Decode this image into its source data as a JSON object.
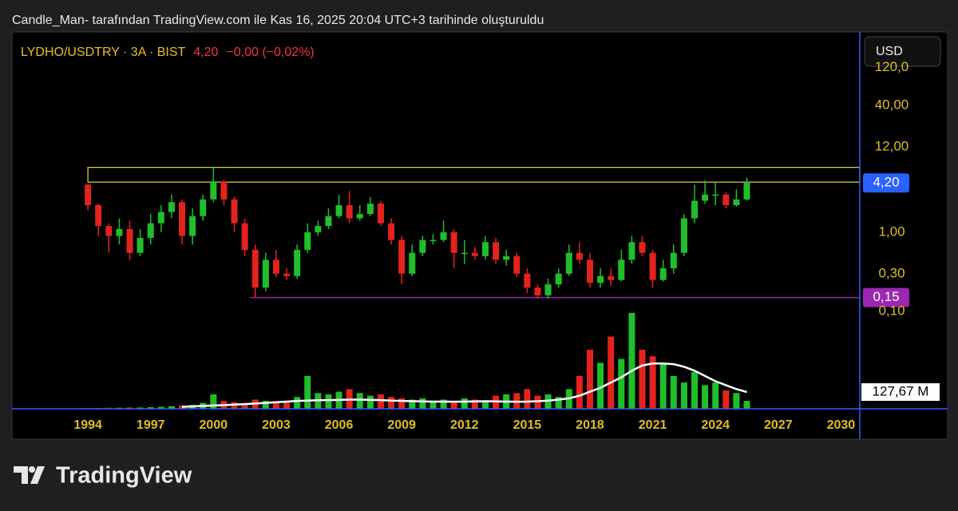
{
  "attribution": "Candle_Man- tarafından TradingView.com ile Kas 16, 2025 20:04 UTC+3 tarihinde oluşturuldu",
  "footer_logo": "TradingView",
  "chart_data": {
    "type": "candlestick",
    "header": {
      "symbol": "LYDHO/USDTRY · 3A · BIST",
      "last": "4,20",
      "change": "−0,00 (−0,02%)"
    },
    "currency_button": "USD",
    "x": [
      1994,
      1994.5,
      1995,
      1995.5,
      1996,
      1996.5,
      1997,
      1997.5,
      1998,
      1998.5,
      1999,
      1999.5,
      2000,
      2000.5,
      2001,
      2001.5,
      2002,
      2002.5,
      2003,
      2003.5,
      2004,
      2004.5,
      2005,
      2005.5,
      2006,
      2006.5,
      2007,
      2007.5,
      2008,
      2008.5,
      2009,
      2009.5,
      2010,
      2010.5,
      2011,
      2011.5,
      2012,
      2012.5,
      2013,
      2013.5,
      2014,
      2014.5,
      2015,
      2015.5,
      2016,
      2016.5,
      2017,
      2017.5,
      2018,
      2018.5,
      2019,
      2019.5,
      2020,
      2020.5,
      2021,
      2021.5,
      2022,
      2022.5,
      2023,
      2023.5,
      2024,
      2024.5,
      2025,
      2025.5
    ],
    "open": [
      4.0,
      2.2,
      1.2,
      0.9,
      1.1,
      0.55,
      0.85,
      1.3,
      1.8,
      2.4,
      0.9,
      1.6,
      2.6,
      4.4,
      2.6,
      1.3,
      0.6,
      0.2,
      0.45,
      0.3,
      0.28,
      0.6,
      1.0,
      1.2,
      1.6,
      2.2,
      1.5,
      1.7,
      2.3,
      1.3,
      0.8,
      0.3,
      0.55,
      0.8,
      0.8,
      1.0,
      0.55,
      0.55,
      0.5,
      0.75,
      0.45,
      0.5,
      0.3,
      0.2,
      0.16,
      0.22,
      0.3,
      0.55,
      0.45,
      0.23,
      0.28,
      0.25,
      0.45,
      0.75,
      0.55,
      0.25,
      0.35,
      0.55,
      1.5,
      2.5,
      3.0,
      3.0,
      2.2,
      2.6
    ],
    "high": [
      4.1,
      2.3,
      1.3,
      1.5,
      1.4,
      1.1,
      1.7,
      2.2,
      3.0,
      2.6,
      2.0,
      3.0,
      6.6,
      4.6,
      2.8,
      1.5,
      0.7,
      0.55,
      0.6,
      0.35,
      0.7,
      1.3,
      1.4,
      2.0,
      3.0,
      3.3,
      2.2,
      2.8,
      2.5,
      1.5,
      0.9,
      0.7,
      0.9,
      0.95,
      1.4,
      1.1,
      0.8,
      0.65,
      0.9,
      0.85,
      0.6,
      0.55,
      0.35,
      0.22,
      0.26,
      0.35,
      0.7,
      0.75,
      0.55,
      0.35,
      0.35,
      0.6,
      0.9,
      0.9,
      0.6,
      0.45,
      0.7,
      1.7,
      4.0,
      4.5,
      4.3,
      3.2,
      3.5,
      4.9
    ],
    "low": [
      1.9,
      0.9,
      0.55,
      0.7,
      0.45,
      0.5,
      0.7,
      1.0,
      1.5,
      0.7,
      0.7,
      1.4,
      2.4,
      2.2,
      1.0,
      0.5,
      0.15,
      0.18,
      0.27,
      0.25,
      0.26,
      0.55,
      0.9,
      1.1,
      1.5,
      1.3,
      1.4,
      1.6,
      1.2,
      0.7,
      0.22,
      0.28,
      0.5,
      0.7,
      0.75,
      0.35,
      0.4,
      0.45,
      0.45,
      0.4,
      0.38,
      0.27,
      0.17,
      0.145,
      0.145,
      0.2,
      0.28,
      0.4,
      0.2,
      0.2,
      0.21,
      0.24,
      0.4,
      0.5,
      0.2,
      0.24,
      0.3,
      0.5,
      1.3,
      2.3,
      2.2,
      2.0,
      2.1,
      2.5
    ],
    "close": [
      2.2,
      1.2,
      0.9,
      1.1,
      0.55,
      0.85,
      1.3,
      1.8,
      2.4,
      0.9,
      1.6,
      2.6,
      4.4,
      2.6,
      1.3,
      0.6,
      0.2,
      0.45,
      0.3,
      0.28,
      0.6,
      1.0,
      1.2,
      1.6,
      2.2,
      1.5,
      1.7,
      2.3,
      1.3,
      0.8,
      0.3,
      0.55,
      0.8,
      0.8,
      1.0,
      0.55,
      0.55,
      0.5,
      0.75,
      0.45,
      0.5,
      0.3,
      0.2,
      0.16,
      0.22,
      0.3,
      0.55,
      0.45,
      0.23,
      0.28,
      0.25,
      0.45,
      0.75,
      0.55,
      0.25,
      0.35,
      0.55,
      1.5,
      2.5,
      3.0,
      3.0,
      2.2,
      2.6,
      4.2
    ],
    "up_color": "#1fbf2a",
    "down_color": "#e3231c",
    "volume": {
      "values": [
        5,
        6,
        8,
        8,
        10,
        10,
        12,
        15,
        20,
        25,
        30,
        45,
        110,
        60,
        50,
        40,
        70,
        60,
        50,
        60,
        90,
        250,
        120,
        110,
        130,
        150,
        120,
        100,
        110,
        90,
        80,
        70,
        80,
        60,
        70,
        60,
        80,
        70,
        60,
        100,
        110,
        120,
        150,
        100,
        110,
        90,
        150,
        250,
        450,
        350,
        550,
        380,
        730,
        450,
        400,
        350,
        250,
        200,
        280,
        180,
        200,
        140,
        120,
        60
      ],
      "lim": [
        0,
        900
      ]
    },
    "volume_ma": {
      "values": [
        null,
        null,
        null,
        null,
        null,
        null,
        null,
        null,
        null,
        15,
        18,
        22,
        25,
        28,
        32,
        36,
        40,
        45,
        50,
        55,
        60,
        62,
        65,
        66,
        68,
        70,
        70,
        68,
        66,
        62,
        60,
        58,
        56,
        55,
        55,
        54,
        55,
        56,
        58,
        56,
        55,
        54,
        55,
        58,
        62,
        70,
        80,
        100,
        130,
        160,
        200,
        240,
        290,
        330,
        345,
        345,
        340,
        320,
        290,
        250,
        210,
        180,
        150,
        127.67
      ],
      "color": "#ffffff",
      "last_label": "127,67 M"
    },
    "xlim": [
      1990.37,
      2030.9
    ],
    "xticks": [
      1994,
      1997,
      2000,
      2003,
      2006,
      2009,
      2012,
      2015,
      2018,
      2021,
      2024,
      2027,
      2030
    ],
    "ylim": [
      0.0059,
      339
    ],
    "log_scale": true,
    "grid": false,
    "yticks": [
      {
        "value": 120,
        "label": "120,0"
      },
      {
        "value": 40,
        "label": "40,00"
      },
      {
        "value": 12,
        "label": "12,00"
      },
      {
        "value": 1,
        "label": "1,00"
      },
      {
        "value": 0.3,
        "label": "0,30"
      },
      {
        "value": 0.1,
        "label": "0,10"
      }
    ],
    "last_price": {
      "value": 4.2,
      "label": "4,20",
      "color": "#2962ff"
    },
    "support_line": {
      "x": 2001.75,
      "value": 0.15,
      "label": "0,15",
      "color": "#9c27b0"
    },
    "resistance_zone": {
      "x": 1994,
      "low": 4.3,
      "high": 6.6,
      "color": "#e8d44d"
    }
  }
}
